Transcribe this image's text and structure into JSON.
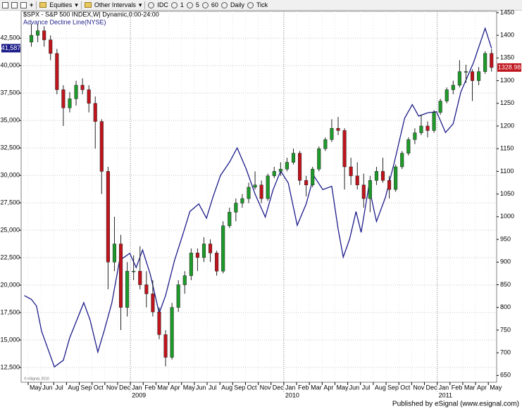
{
  "toolbar": {
    "items": [
      "Equities",
      "Other Intervals",
      "IDC",
      "1",
      "5",
      "60",
      "Daily",
      "Tick"
    ]
  },
  "footer": "Published by eSignal (www.esignal.com)",
  "copyright": "© eSignal, 2010",
  "chart_data": {
    "type": "candlestick",
    "title": "$SPX - S&P 500 INDEX,W| Dynamic,0:00-24:00",
    "grid": true,
    "xlim": [
      -0.8,
      36.4
    ],
    "xticks": [
      {
        "value": -0.25,
        "label": "May"
      },
      {
        "value": 0.75,
        "label": "Jun"
      },
      {
        "value": 1.75,
        "label": "Jul"
      },
      {
        "value": 2.75,
        "label": "Aug"
      },
      {
        "value": 3.75,
        "label": "Sep"
      },
      {
        "value": 4.75,
        "label": "Oct"
      },
      {
        "value": 5.75,
        "label": "Nov"
      },
      {
        "value": 6.75,
        "label": "Dec"
      },
      {
        "value": 7.75,
        "label": "Jan"
      },
      {
        "value": 8.75,
        "label": "Feb"
      },
      {
        "value": 9.75,
        "label": "Mar"
      },
      {
        "value": 10.75,
        "label": "Apr"
      },
      {
        "value": 11.75,
        "label": "May"
      },
      {
        "value": 12.75,
        "label": "Jun"
      },
      {
        "value": 13.75,
        "label": "Jul"
      },
      {
        "value": 14.75,
        "label": "Aug"
      },
      {
        "value": 15.75,
        "label": "Sep"
      },
      {
        "value": 16.75,
        "label": "Oct"
      },
      {
        "value": 17.75,
        "label": "Nov"
      },
      {
        "value": 18.75,
        "label": "Dec"
      },
      {
        "value": 19.75,
        "label": "Jan"
      },
      {
        "value": 20.75,
        "label": "Feb"
      },
      {
        "value": 21.75,
        "label": "Mar"
      },
      {
        "value": 22.75,
        "label": "Apr"
      },
      {
        "value": 23.75,
        "label": "May"
      },
      {
        "value": 24.75,
        "label": "Jun"
      },
      {
        "value": 25.75,
        "label": "Jul"
      },
      {
        "value": 26.75,
        "label": "Aug"
      },
      {
        "value": 27.75,
        "label": "Sep"
      },
      {
        "value": 28.75,
        "label": "Oct"
      },
      {
        "value": 29.75,
        "label": "Nov"
      },
      {
        "value": 30.75,
        "label": "Dec"
      },
      {
        "value": 31.75,
        "label": "Jan"
      },
      {
        "value": 32.75,
        "label": "Feb"
      },
      {
        "value": 33.75,
        "label": "Mar"
      },
      {
        "value": 34.75,
        "label": "Apr"
      },
      {
        "value": 35.75,
        "label": "May"
      }
    ],
    "xyears": [
      {
        "value": 7.75,
        "label": "2009"
      },
      {
        "value": 19.75,
        "label": "2010"
      },
      {
        "value": 31.75,
        "label": "2011"
      }
    ],
    "ylim": [
      11150,
      44950
    ],
    "yticks": [
      {
        "value": 12500,
        "label": "12,500"
      },
      {
        "value": 15000,
        "label": "15,000"
      },
      {
        "value": 17500,
        "label": "17,500"
      },
      {
        "value": 20000,
        "label": "20,000"
      },
      {
        "value": 22500,
        "label": "22,500"
      },
      {
        "value": 25000,
        "label": "25,000"
      },
      {
        "value": 27500,
        "label": "27,500"
      },
      {
        "value": 30000,
        "label": "30,000"
      },
      {
        "value": 32500,
        "label": "32,500"
      },
      {
        "value": 35000,
        "label": "35,000"
      },
      {
        "value": 37500,
        "label": "37,500"
      },
      {
        "value": 40000,
        "label": "40,000"
      },
      {
        "value": 42500,
        "label": "42,500"
      }
    ],
    "y2lim": [
      635,
      1453
    ],
    "y2ticks": [
      650,
      700,
      750,
      800,
      850,
      900,
      950,
      1000,
      1050,
      1100,
      1150,
      1200,
      1250,
      1300,
      1350,
      1400,
      1450
    ],
    "series": [
      {
        "name": "Advance Decline Line(NYSE)",
        "type": "line",
        "color": "#1c1c8a",
        "last_label": "41,587",
        "x": [
          -0.55,
          0,
          0.4,
          0.8,
          1.8,
          2.5,
          3.0,
          4.1,
          4.6,
          5.2,
          5.7,
          6.3,
          6.9,
          7.7,
          8.2,
          8.7,
          9.3,
          10.0,
          10.5,
          11.2,
          11.9,
          12.4,
          13.1,
          13.7,
          14.2,
          14.8,
          15.5,
          16.1,
          16.8,
          17.5,
          18.3,
          18.9,
          19.5,
          20.1,
          20.8,
          21.5,
          22.1,
          22.8,
          23.5,
          24.0,
          24.4,
          24.9,
          25.4,
          25.8,
          26.4,
          27.0,
          27.7,
          28.4,
          29.2,
          29.8,
          30.3,
          31.0,
          31.7,
          32.4,
          33.0,
          33.6,
          34.6,
          35.5,
          36.0
        ],
        "values": [
          19050,
          18700,
          18100,
          15800,
          12550,
          13150,
          15200,
          18400,
          16800,
          13900,
          15850,
          18400,
          22250,
          22900,
          21600,
          23200,
          21000,
          17450,
          19050,
          22250,
          24800,
          26700,
          27400,
          26100,
          28000,
          30000,
          31200,
          32500,
          30600,
          28300,
          26200,
          28650,
          30400,
          29300,
          25450,
          27400,
          29950,
          28700,
          29000,
          25100,
          22550,
          24200,
          26700,
          24800,
          29000,
          25800,
          28000,
          31200,
          35200,
          36450,
          35400,
          35700,
          35800,
          33900,
          34700,
          37600,
          40300,
          43400,
          41587
        ]
      },
      {
        "type": "candlestick",
        "axis": "y2",
        "up_color": "#1e9a2a",
        "down_color": "#c0141c",
        "candles": [
          [
            0,
            1385,
            1425,
            1375,
            1400
          ],
          [
            0.5,
            1400,
            1425,
            1385,
            1410
          ],
          [
            1,
            1410,
            1420,
            1375,
            1390
          ],
          [
            1.5,
            1390,
            1400,
            1345,
            1360
          ],
          [
            2,
            1360,
            1370,
            1270,
            1280
          ],
          [
            2.5,
            1280,
            1290,
            1200,
            1240
          ],
          [
            3,
            1240,
            1275,
            1230,
            1260
          ],
          [
            3.5,
            1260,
            1300,
            1245,
            1290
          ],
          [
            4,
            1290,
            1305,
            1270,
            1280
          ],
          [
            4.5,
            1280,
            1290,
            1230,
            1250
          ],
          [
            5,
            1250,
            1265,
            1150,
            1210
          ],
          [
            5.5,
            1210,
            1215,
            1050,
            1100
          ],
          [
            6,
            1100,
            1110,
            840,
            900
          ],
          [
            6.5,
            900,
            1000,
            880,
            940
          ],
          [
            7,
            940,
            960,
            750,
            800
          ],
          [
            7.5,
            800,
            900,
            780,
            880
          ],
          [
            8,
            880,
            915,
            860,
            880
          ],
          [
            8.5,
            880,
            935,
            840,
            850
          ],
          [
            9,
            850,
            880,
            800,
            830
          ],
          [
            9.5,
            830,
            860,
            780,
            790
          ],
          [
            10,
            790,
            800,
            730,
            740
          ],
          [
            10.5,
            740,
            750,
            670,
            690
          ],
          [
            11,
            690,
            810,
            685,
            800
          ],
          [
            11.5,
            800,
            860,
            790,
            850
          ],
          [
            12,
            850,
            880,
            830,
            870
          ],
          [
            12.5,
            870,
            930,
            860,
            920
          ],
          [
            13,
            920,
            930,
            880,
            910
          ],
          [
            13.5,
            910,
            955,
            900,
            940
          ],
          [
            14,
            940,
            950,
            900,
            920
          ],
          [
            14.5,
            920,
            925,
            870,
            880
          ],
          [
            15,
            880,
            990,
            875,
            980
          ],
          [
            15.5,
            980,
            1020,
            975,
            1010
          ],
          [
            16,
            1010,
            1040,
            990,
            1030
          ],
          [
            16.5,
            1030,
            1050,
            1020,
            1040
          ],
          [
            17,
            1040,
            1075,
            1030,
            1065
          ],
          [
            17.5,
            1065,
            1100,
            1060,
            1070
          ],
          [
            18,
            1070,
            1080,
            1030,
            1040
          ],
          [
            18.5,
            1040,
            1095,
            1035,
            1090
          ],
          [
            19,
            1090,
            1110,
            1085,
            1100
          ],
          [
            19.5,
            1100,
            1120,
            1090,
            1105
          ],
          [
            20,
            1105,
            1130,
            1100,
            1120
          ],
          [
            20.5,
            1120,
            1150,
            1115,
            1140
          ],
          [
            21,
            1140,
            1145,
            1070,
            1080
          ],
          [
            21.5,
            1080,
            1090,
            1045,
            1070
          ],
          [
            22,
            1070,
            1110,
            1065,
            1105
          ],
          [
            22.5,
            1105,
            1155,
            1100,
            1150
          ],
          [
            23,
            1150,
            1175,
            1145,
            1170
          ],
          [
            23.5,
            1170,
            1215,
            1165,
            1195
          ],
          [
            24,
            1195,
            1220,
            1180,
            1190
          ],
          [
            24.5,
            1190,
            1195,
            1060,
            1110
          ],
          [
            25,
            1110,
            1130,
            1070,
            1090
          ],
          [
            25.5,
            1090,
            1120,
            1060,
            1070
          ],
          [
            26,
            1070,
            1095,
            1020,
            1040
          ],
          [
            26.5,
            1040,
            1090,
            1010,
            1080
          ],
          [
            27,
            1080,
            1110,
            1070,
            1100
          ],
          [
            27.5,
            1100,
            1130,
            1075,
            1080
          ],
          [
            28,
            1080,
            1090,
            1040,
            1060
          ],
          [
            28.5,
            1060,
            1115,
            1055,
            1110
          ],
          [
            29,
            1110,
            1145,
            1105,
            1140
          ],
          [
            29.5,
            1140,
            1175,
            1135,
            1170
          ],
          [
            30,
            1170,
            1195,
            1160,
            1185
          ],
          [
            30.5,
            1185,
            1225,
            1180,
            1200
          ],
          [
            31,
            1200,
            1210,
            1175,
            1190
          ],
          [
            31.5,
            1190,
            1235,
            1185,
            1230
          ],
          [
            32,
            1230,
            1260,
            1225,
            1255
          ],
          [
            32.5,
            1255,
            1285,
            1250,
            1280
          ],
          [
            33,
            1280,
            1300,
            1270,
            1290
          ],
          [
            33.5,
            1290,
            1345,
            1285,
            1320
          ],
          [
            34,
            1320,
            1335,
            1295,
            1320
          ],
          [
            34.5,
            1320,
            1325,
            1255,
            1300
          ],
          [
            35,
            1300,
            1330,
            1290,
            1320
          ],
          [
            35.5,
            1320,
            1365,
            1315,
            1360
          ],
          [
            36,
            1360,
            1370,
            1320,
            1328.98
          ]
        ]
      }
    ]
  }
}
